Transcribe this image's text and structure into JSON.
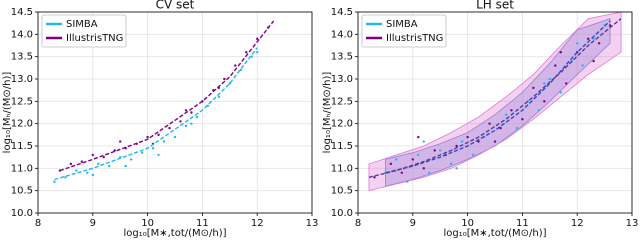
{
  "chart_data": [
    {
      "type": "scatter",
      "title": "CV set",
      "x_label": "log₁₀[M∗,tot/(M⊙/h)]",
      "y_label": "log₁₀[Mₕ/(M⊙/h)]",
      "xlim": [
        8,
        13
      ],
      "ylim": [
        10,
        14.5
      ],
      "xticks": [
        8,
        9,
        10,
        11,
        12,
        13
      ],
      "yticks": [
        {
          "value": 10,
          "label": "10.0"
        },
        10.5,
        {
          "value": 11,
          "label": "11.0"
        },
        11.5,
        {
          "value": 12,
          "label": "12.0"
        },
        12.5,
        {
          "value": 13,
          "label": "13.0"
        },
        13.5,
        {
          "value": 14,
          "label": "14.0"
        },
        14.5
      ],
      "grid": true,
      "legend": "upper left",
      "series": [
        {
          "name": "SIMBA",
          "color": "#1fb8f0",
          "x": [
            8.3,
            8.5,
            8.7,
            8.9,
            9.1,
            9.3,
            9.5,
            9.7,
            9.9,
            10.1,
            10.3,
            10.5,
            10.7,
            10.9,
            11.1,
            11.3,
            11.5,
            11.7,
            11.9,
            12.0,
            9.0,
            9.6,
            10.2,
            10.8
          ],
          "y": [
            10.7,
            10.8,
            10.95,
            10.9,
            11.1,
            11.05,
            11.25,
            11.2,
            11.35,
            11.45,
            11.6,
            11.7,
            11.95,
            12.15,
            12.4,
            12.6,
            12.9,
            13.2,
            13.5,
            13.6,
            10.85,
            11.05,
            11.3,
            12.0
          ],
          "fit_x": [
            8.3,
            9,
            10,
            11,
            11.5,
            12
          ],
          "fit_y": [
            10.75,
            11.0,
            11.45,
            12.3,
            12.9,
            13.7
          ]
        },
        {
          "name": "IllustrisTNG",
          "color": "#800080",
          "x": [
            8.4,
            8.6,
            8.8,
            9.0,
            9.2,
            9.4,
            9.6,
            9.8,
            10.0,
            10.2,
            10.4,
            10.6,
            10.8,
            11.0,
            11.2,
            11.4,
            11.6,
            11.8,
            12.0,
            12.2,
            9.5,
            10.1,
            10.7,
            11.3
          ],
          "y": [
            10.95,
            11.1,
            11.15,
            11.3,
            11.25,
            11.4,
            11.45,
            11.55,
            11.7,
            11.75,
            11.9,
            12.05,
            12.25,
            12.5,
            12.75,
            13.0,
            13.3,
            13.6,
            13.9,
            14.15,
            11.6,
            11.55,
            12.3,
            12.8
          ],
          "fit_x": [
            8.4,
            9,
            10,
            11,
            11.5,
            12.3
          ],
          "fit_y": [
            10.95,
            11.2,
            11.65,
            12.5,
            13.05,
            14.3
          ]
        }
      ]
    },
    {
      "type": "scatter",
      "title": "LH set",
      "x_label": "log₁₀[M∗,tot/(M⊙/h)]",
      "y_label": "log₁₀[Mₕ/(M⊙/h)]",
      "xlim": [
        8,
        13
      ],
      "ylim": [
        10,
        14.5
      ],
      "xticks": [
        8,
        9,
        10,
        11,
        12,
        13
      ],
      "yticks": [
        {
          "value": 10,
          "label": "10.0"
        },
        10.5,
        {
          "value": 11,
          "label": "11.0"
        },
        11.5,
        {
          "value": 12,
          "label": "12.0"
        },
        12.5,
        {
          "value": 13,
          "label": "13.0"
        },
        13.5,
        {
          "value": 14,
          "label": "14.0"
        },
        14.5
      ],
      "grid": true,
      "legend": "upper left",
      "series": [
        {
          "name": "SIMBA",
          "color": "#1fb8f0",
          "band_color": "#6f86d6",
          "line_color": "#2a4fc8",
          "x": [
            8.5,
            8.7,
            8.9,
            9.1,
            9.3,
            9.5,
            9.7,
            9.9,
            10.1,
            10.3,
            10.5,
            10.7,
            10.9,
            11.1,
            11.3,
            11.5,
            11.7,
            11.9,
            12.1,
            12.3,
            12.5,
            9.2,
            9.8,
            10.6,
            11.4,
            12.0
          ],
          "y": [
            10.9,
            11.2,
            10.7,
            11.3,
            10.9,
            11.4,
            11.1,
            11.6,
            11.3,
            11.7,
            11.6,
            12.2,
            11.9,
            12.5,
            12.3,
            13.0,
            12.7,
            13.4,
            13.3,
            13.9,
            14.2,
            11.6,
            11.0,
            11.9,
            12.9,
            13.8
          ],
          "fit_x": [
            8.5,
            9,
            9.5,
            10,
            10.5,
            11,
            11.5,
            12,
            12.6
          ],
          "fit_y": [
            10.9,
            11.05,
            11.25,
            11.5,
            11.85,
            12.3,
            12.9,
            13.6,
            14.3
          ],
          "band_low": [
            10.6,
            10.75,
            10.95,
            11.2,
            11.5,
            11.95,
            12.5,
            13.1,
            13.8
          ],
          "band_high": [
            11.2,
            11.35,
            11.55,
            11.8,
            12.2,
            12.7,
            13.35,
            14.1,
            14.35
          ]
        },
        {
          "name": "IllustrisTNG",
          "color": "#800080",
          "band_color": "#e07ad8",
          "line_color": "#5a3a9a",
          "x": [
            8.3,
            8.6,
            8.8,
            9.0,
            9.2,
            9.4,
            9.6,
            9.8,
            10.0,
            10.2,
            10.4,
            10.6,
            10.8,
            11.0,
            11.2,
            11.4,
            11.6,
            11.8,
            12.0,
            12.2,
            12.4,
            12.6,
            9.1,
            10.5,
            11.7,
            12.3
          ],
          "y": [
            10.8,
            11.1,
            10.9,
            11.2,
            11.0,
            11.4,
            11.3,
            11.5,
            11.7,
            11.6,
            12.0,
            11.9,
            12.3,
            12.1,
            12.8,
            12.5,
            13.3,
            12.9,
            13.6,
            13.9,
            13.8,
            14.2,
            11.7,
            11.6,
            13.6,
            13.4
          ],
          "fit_x": [
            8.2,
            8.7,
            9.2,
            9.7,
            10.2,
            10.7,
            11.2,
            11.7,
            12.2,
            12.8
          ],
          "fit_y": [
            10.8,
            10.95,
            11.15,
            11.4,
            11.7,
            12.1,
            12.6,
            13.15,
            13.75,
            14.35
          ],
          "band_low": [
            10.5,
            10.65,
            10.8,
            11.0,
            11.3,
            11.65,
            12.1,
            12.6,
            13.1,
            13.6
          ],
          "band_high": [
            11.1,
            11.3,
            11.5,
            11.8,
            12.15,
            12.6,
            13.1,
            13.75,
            14.35,
            14.5
          ]
        }
      ]
    }
  ]
}
